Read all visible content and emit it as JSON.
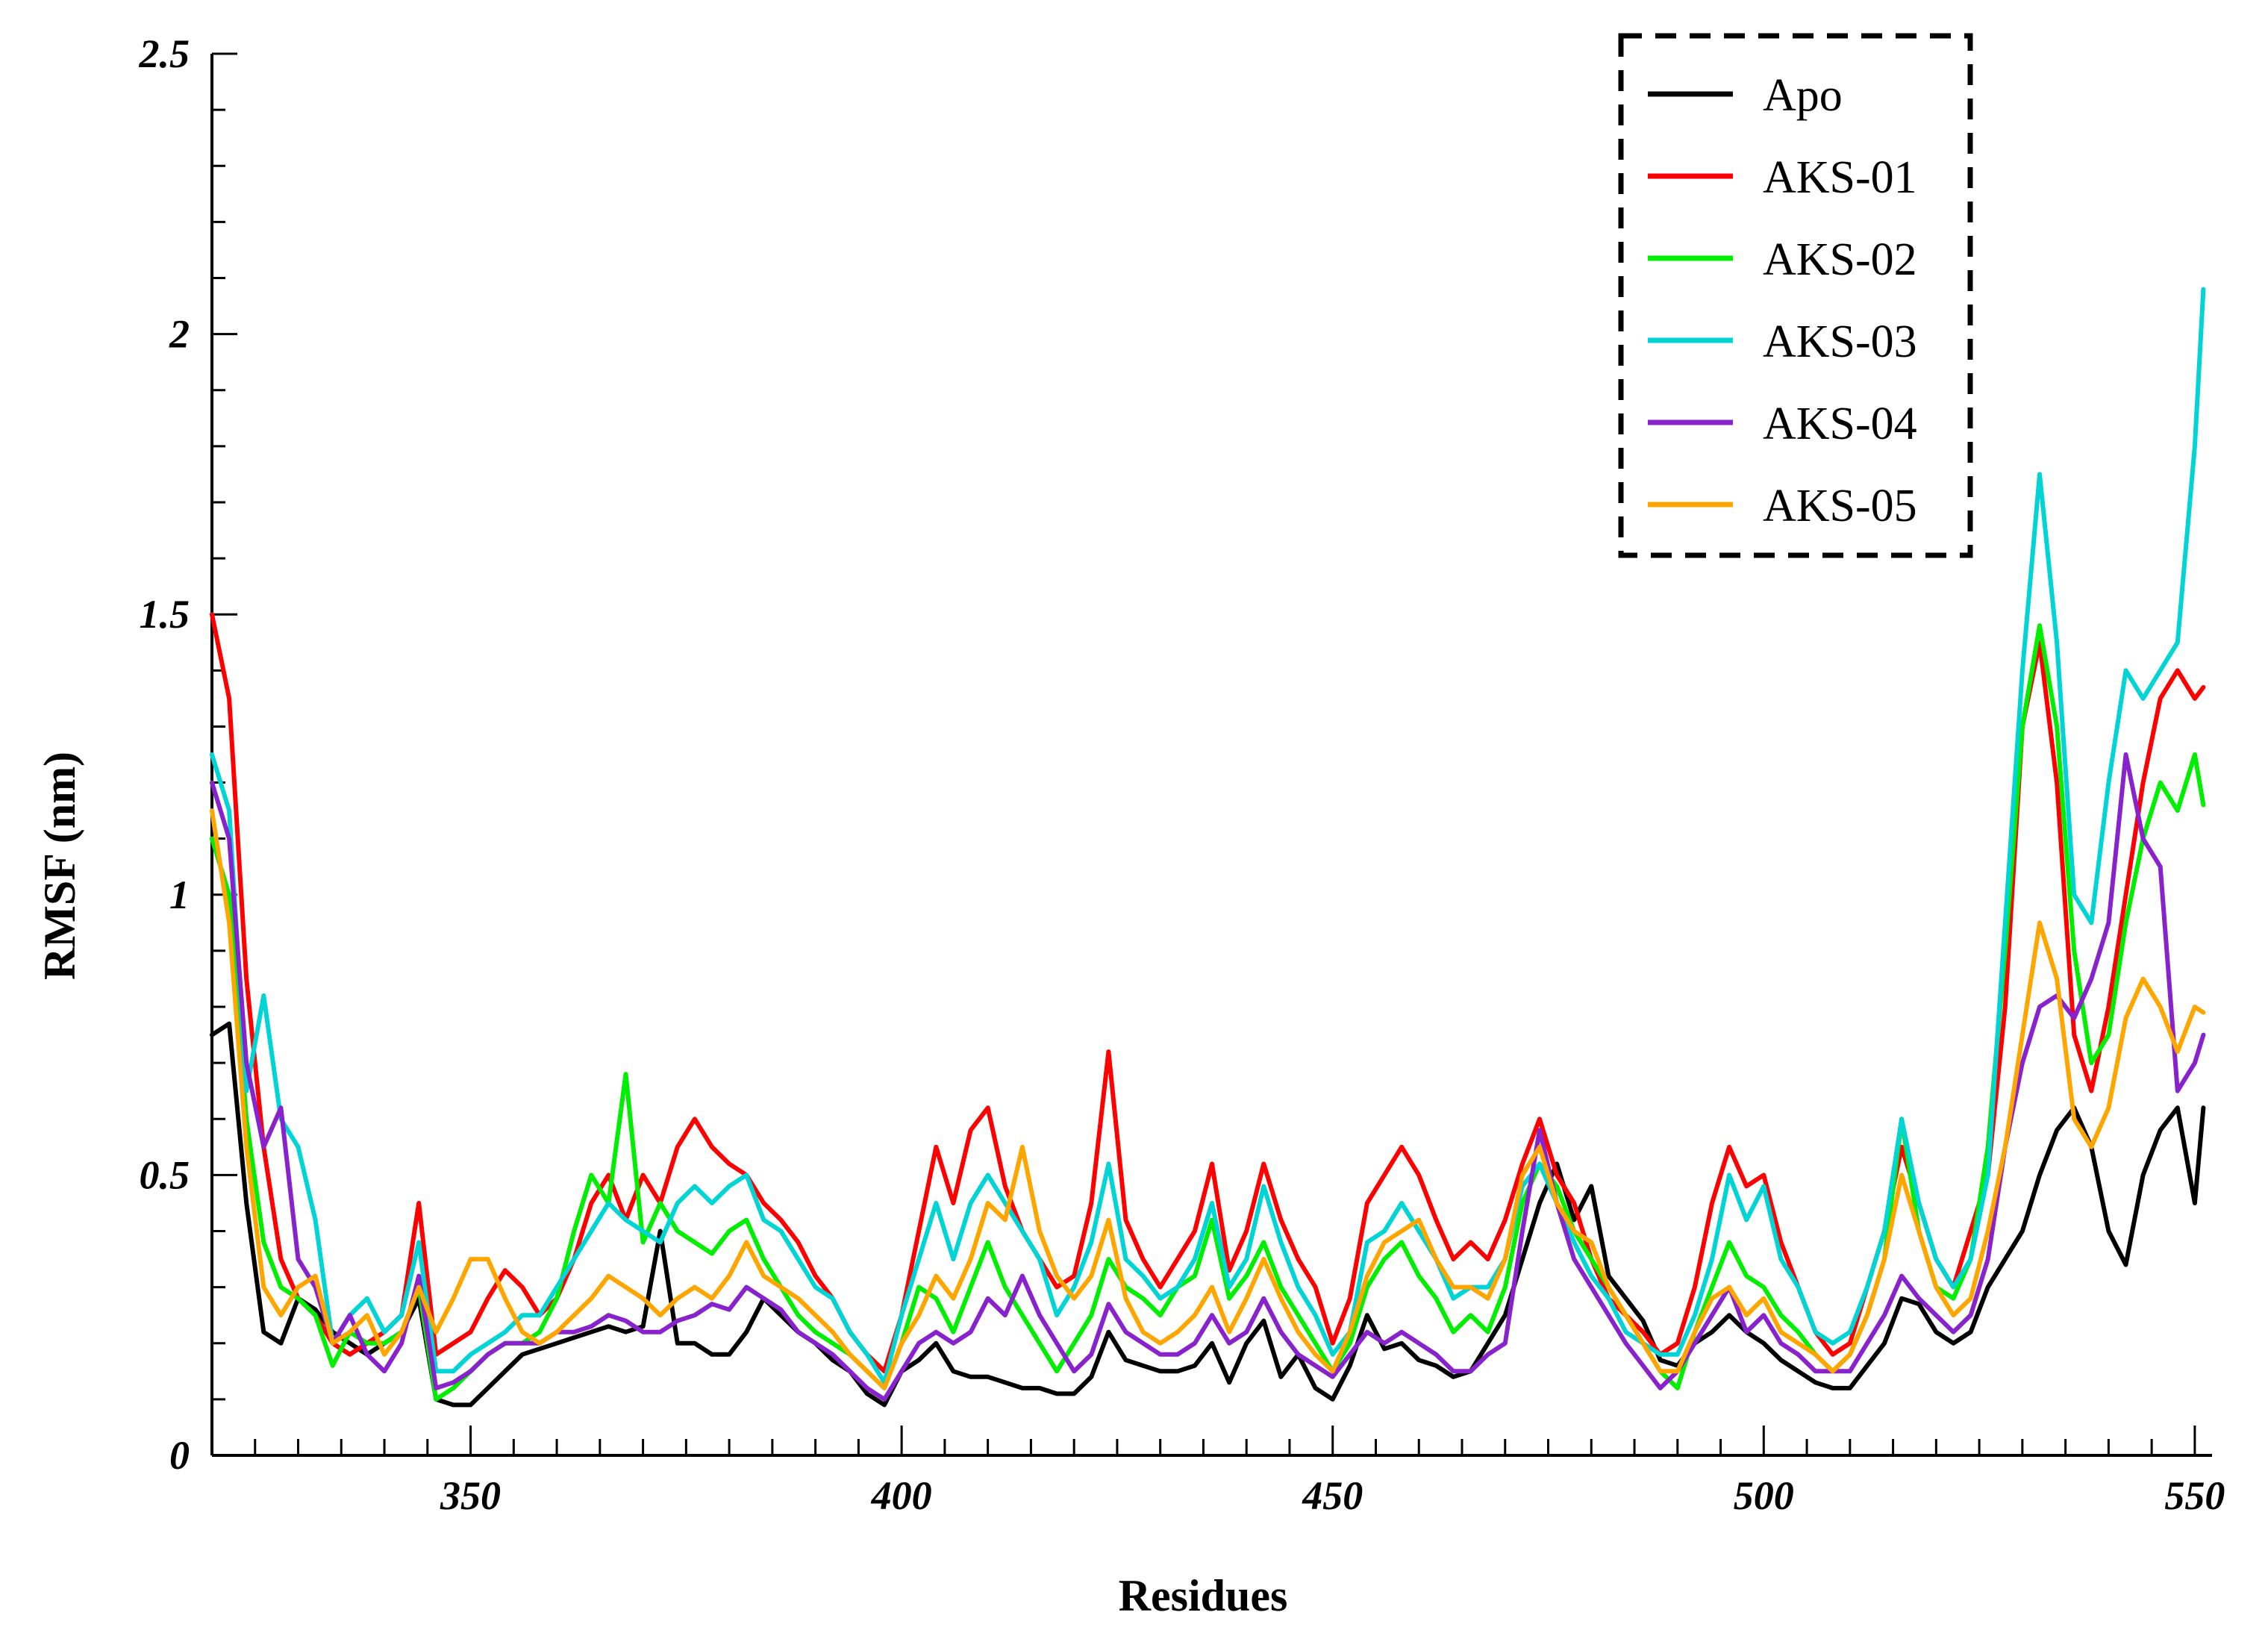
{
  "chart_data": {
    "type": "line",
    "xlabel": "Residues",
    "ylabel": "RMSF (nm)",
    "xlim": [
      320,
      552
    ],
    "ylim": [
      0,
      2.5
    ],
    "x_ticks": [
      350,
      400,
      450,
      500,
      550
    ],
    "x_tick_labels": [
      "350",
      "400",
      "450",
      "500",
      "550"
    ],
    "x_minor_step": 5,
    "y_ticks": [
      0,
      0.5,
      1,
      1.5,
      2,
      2.5
    ],
    "y_tick_labels": [
      "0",
      "0.5",
      "1",
      "1.5",
      "2",
      "2.5"
    ],
    "y_minor_step": 0.1,
    "grid": false,
    "legend_position": "top-right",
    "legend_border": "dashed",
    "x": [
      320,
      322,
      324,
      326,
      328,
      330,
      332,
      334,
      336,
      338,
      340,
      342,
      344,
      346,
      348,
      350,
      352,
      354,
      356,
      358,
      360,
      362,
      364,
      366,
      368,
      370,
      372,
      374,
      376,
      378,
      380,
      382,
      384,
      386,
      388,
      390,
      392,
      394,
      396,
      398,
      400,
      402,
      404,
      406,
      408,
      410,
      412,
      414,
      416,
      418,
      420,
      422,
      424,
      426,
      428,
      430,
      432,
      434,
      436,
      438,
      440,
      442,
      444,
      446,
      448,
      450,
      452,
      454,
      456,
      458,
      460,
      462,
      464,
      466,
      468,
      470,
      472,
      474,
      476,
      478,
      480,
      482,
      484,
      486,
      488,
      490,
      492,
      494,
      496,
      498,
      500,
      502,
      504,
      506,
      508,
      510,
      512,
      514,
      516,
      518,
      520,
      522,
      524,
      526,
      528,
      530,
      532,
      534,
      536,
      538,
      540,
      542,
      544,
      546,
      548,
      550,
      551
    ],
    "series": [
      {
        "name": "Apo",
        "color": "#000000",
        "values": [
          0.75,
          0.77,
          0.45,
          0.22,
          0.2,
          0.28,
          0.26,
          0.22,
          0.2,
          0.18,
          0.2,
          0.22,
          0.28,
          0.1,
          0.09,
          0.09,
          0.12,
          0.15,
          0.18,
          0.19,
          0.2,
          0.21,
          0.22,
          0.23,
          0.22,
          0.23,
          0.4,
          0.2,
          0.2,
          0.18,
          0.18,
          0.22,
          0.28,
          0.25,
          0.22,
          0.2,
          0.17,
          0.15,
          0.11,
          0.09,
          0.15,
          0.17,
          0.2,
          0.15,
          0.14,
          0.14,
          0.13,
          0.12,
          0.12,
          0.11,
          0.11,
          0.14,
          0.22,
          0.17,
          0.16,
          0.15,
          0.15,
          0.16,
          0.2,
          0.13,
          0.2,
          0.24,
          0.14,
          0.18,
          0.12,
          0.1,
          0.16,
          0.25,
          0.19,
          0.2,
          0.17,
          0.16,
          0.14,
          0.15,
          0.2,
          0.25,
          0.35,
          0.45,
          0.52,
          0.42,
          0.48,
          0.32,
          0.28,
          0.24,
          0.17,
          0.16,
          0.2,
          0.22,
          0.25,
          0.22,
          0.2,
          0.17,
          0.15,
          0.13,
          0.12,
          0.12,
          0.16,
          0.2,
          0.28,
          0.27,
          0.22,
          0.2,
          0.22,
          0.3,
          0.35,
          0.4,
          0.5,
          0.58,
          0.62,
          0.55,
          0.4,
          0.34,
          0.5,
          0.58,
          0.62,
          0.45,
          0.62
        ]
      },
      {
        "name": "AKS-01",
        "color": "#ff0000",
        "values": [
          1.5,
          1.35,
          0.85,
          0.55,
          0.35,
          0.28,
          0.25,
          0.2,
          0.18,
          0.2,
          0.22,
          0.25,
          0.45,
          0.18,
          0.2,
          0.22,
          0.28,
          0.33,
          0.3,
          0.25,
          0.28,
          0.35,
          0.45,
          0.5,
          0.42,
          0.5,
          0.45,
          0.55,
          0.6,
          0.55,
          0.52,
          0.5,
          0.45,
          0.42,
          0.38,
          0.32,
          0.28,
          0.22,
          0.18,
          0.15,
          0.25,
          0.4,
          0.55,
          0.45,
          0.58,
          0.62,
          0.48,
          0.4,
          0.35,
          0.3,
          0.32,
          0.45,
          0.72,
          0.42,
          0.35,
          0.3,
          0.35,
          0.4,
          0.52,
          0.33,
          0.4,
          0.52,
          0.42,
          0.35,
          0.3,
          0.2,
          0.28,
          0.45,
          0.5,
          0.55,
          0.5,
          0.42,
          0.35,
          0.38,
          0.35,
          0.42,
          0.52,
          0.6,
          0.5,
          0.45,
          0.35,
          0.28,
          0.25,
          0.22,
          0.18,
          0.2,
          0.3,
          0.45,
          0.55,
          0.48,
          0.5,
          0.38,
          0.3,
          0.22,
          0.18,
          0.2,
          0.3,
          0.4,
          0.55,
          0.45,
          0.35,
          0.3,
          0.4,
          0.5,
          0.8,
          1.3,
          1.45,
          1.2,
          0.75,
          0.65,
          0.8,
          1.0,
          1.2,
          1.35,
          1.4,
          1.35,
          1.37
        ]
      },
      {
        "name": "AKS-02",
        "color": "#00ee00",
        "values": [
          1.1,
          1.0,
          0.6,
          0.38,
          0.3,
          0.28,
          0.25,
          0.16,
          0.22,
          0.2,
          0.2,
          0.22,
          0.3,
          0.1,
          0.12,
          0.15,
          0.18,
          0.2,
          0.2,
          0.22,
          0.28,
          0.4,
          0.5,
          0.45,
          0.68,
          0.38,
          0.45,
          0.4,
          0.38,
          0.36,
          0.4,
          0.42,
          0.35,
          0.3,
          0.25,
          0.22,
          0.2,
          0.18,
          0.15,
          0.12,
          0.2,
          0.3,
          0.28,
          0.22,
          0.3,
          0.38,
          0.3,
          0.25,
          0.2,
          0.15,
          0.2,
          0.25,
          0.35,
          0.3,
          0.28,
          0.25,
          0.3,
          0.32,
          0.42,
          0.28,
          0.32,
          0.38,
          0.3,
          0.25,
          0.2,
          0.15,
          0.2,
          0.3,
          0.35,
          0.38,
          0.32,
          0.28,
          0.22,
          0.25,
          0.22,
          0.3,
          0.45,
          0.52,
          0.48,
          0.4,
          0.35,
          0.3,
          0.25,
          0.2,
          0.15,
          0.12,
          0.22,
          0.3,
          0.38,
          0.32,
          0.3,
          0.25,
          0.22,
          0.18,
          0.15,
          0.18,
          0.25,
          0.35,
          0.6,
          0.4,
          0.3,
          0.28,
          0.35,
          0.55,
          0.9,
          1.3,
          1.48,
          1.3,
          0.9,
          0.7,
          0.75,
          0.95,
          1.1,
          1.2,
          1.15,
          1.25,
          1.16
        ]
      },
      {
        "name": "AKS-03",
        "color": "#00d4d4",
        "values": [
          1.25,
          1.15,
          0.65,
          0.82,
          0.6,
          0.55,
          0.42,
          0.2,
          0.25,
          0.28,
          0.22,
          0.25,
          0.38,
          0.15,
          0.15,
          0.18,
          0.2,
          0.22,
          0.25,
          0.25,
          0.3,
          0.35,
          0.4,
          0.45,
          0.42,
          0.4,
          0.38,
          0.45,
          0.48,
          0.45,
          0.48,
          0.5,
          0.42,
          0.4,
          0.35,
          0.3,
          0.28,
          0.22,
          0.18,
          0.13,
          0.25,
          0.35,
          0.45,
          0.35,
          0.45,
          0.5,
          0.45,
          0.4,
          0.35,
          0.25,
          0.3,
          0.38,
          0.52,
          0.35,
          0.32,
          0.28,
          0.3,
          0.35,
          0.45,
          0.3,
          0.35,
          0.48,
          0.38,
          0.3,
          0.25,
          0.18,
          0.22,
          0.38,
          0.4,
          0.45,
          0.4,
          0.35,
          0.28,
          0.3,
          0.3,
          0.35,
          0.48,
          0.52,
          0.45,
          0.38,
          0.32,
          0.28,
          0.22,
          0.2,
          0.18,
          0.18,
          0.25,
          0.35,
          0.5,
          0.42,
          0.48,
          0.35,
          0.3,
          0.22,
          0.2,
          0.22,
          0.3,
          0.4,
          0.6,
          0.45,
          0.35,
          0.3,
          0.35,
          0.5,
          0.95,
          1.4,
          1.75,
          1.45,
          1.0,
          0.95,
          1.2,
          1.4,
          1.35,
          1.4,
          1.45,
          1.8,
          2.08
        ]
      },
      {
        "name": "AKS-04",
        "color": "#8822cc",
        "values": [
          1.2,
          1.1,
          0.7,
          0.55,
          0.62,
          0.35,
          0.3,
          0.2,
          0.25,
          0.18,
          0.15,
          0.2,
          0.32,
          0.12,
          0.13,
          0.15,
          0.18,
          0.2,
          0.2,
          0.2,
          0.22,
          0.22,
          0.23,
          0.25,
          0.24,
          0.22,
          0.22,
          0.24,
          0.25,
          0.27,
          0.26,
          0.3,
          0.28,
          0.26,
          0.22,
          0.2,
          0.18,
          0.15,
          0.12,
          0.1,
          0.15,
          0.2,
          0.22,
          0.2,
          0.22,
          0.28,
          0.25,
          0.32,
          0.25,
          0.2,
          0.15,
          0.18,
          0.27,
          0.22,
          0.2,
          0.18,
          0.18,
          0.2,
          0.25,
          0.2,
          0.22,
          0.28,
          0.22,
          0.18,
          0.16,
          0.14,
          0.18,
          0.22,
          0.2,
          0.22,
          0.2,
          0.18,
          0.15,
          0.15,
          0.18,
          0.2,
          0.4,
          0.58,
          0.45,
          0.35,
          0.3,
          0.25,
          0.2,
          0.16,
          0.12,
          0.15,
          0.2,
          0.25,
          0.3,
          0.22,
          0.25,
          0.2,
          0.18,
          0.15,
          0.15,
          0.15,
          0.2,
          0.25,
          0.32,
          0.28,
          0.25,
          0.22,
          0.25,
          0.35,
          0.55,
          0.7,
          0.8,
          0.82,
          0.78,
          0.85,
          0.95,
          1.25,
          1.1,
          1.05,
          0.65,
          0.7,
          0.75
        ]
      },
      {
        "name": "AKS-05",
        "color": "#ffa500",
        "values": [
          1.15,
          0.95,
          0.55,
          0.3,
          0.25,
          0.3,
          0.32,
          0.2,
          0.22,
          0.25,
          0.18,
          0.22,
          0.3,
          0.22,
          0.28,
          0.35,
          0.35,
          0.28,
          0.22,
          0.2,
          0.22,
          0.25,
          0.28,
          0.32,
          0.3,
          0.28,
          0.25,
          0.28,
          0.3,
          0.28,
          0.32,
          0.38,
          0.32,
          0.3,
          0.28,
          0.25,
          0.22,
          0.18,
          0.15,
          0.12,
          0.2,
          0.25,
          0.32,
          0.28,
          0.35,
          0.45,
          0.42,
          0.55,
          0.4,
          0.32,
          0.28,
          0.32,
          0.42,
          0.28,
          0.22,
          0.2,
          0.22,
          0.25,
          0.3,
          0.22,
          0.28,
          0.35,
          0.28,
          0.22,
          0.18,
          0.15,
          0.22,
          0.32,
          0.38,
          0.4,
          0.42,
          0.35,
          0.3,
          0.3,
          0.28,
          0.35,
          0.5,
          0.55,
          0.45,
          0.4,
          0.38,
          0.3,
          0.25,
          0.2,
          0.15,
          0.15,
          0.22,
          0.28,
          0.3,
          0.25,
          0.28,
          0.22,
          0.2,
          0.18,
          0.15,
          0.18,
          0.25,
          0.35,
          0.5,
          0.4,
          0.3,
          0.25,
          0.28,
          0.4,
          0.55,
          0.75,
          0.95,
          0.85,
          0.6,
          0.55,
          0.62,
          0.78,
          0.85,
          0.8,
          0.72,
          0.8,
          0.79
        ]
      }
    ]
  }
}
